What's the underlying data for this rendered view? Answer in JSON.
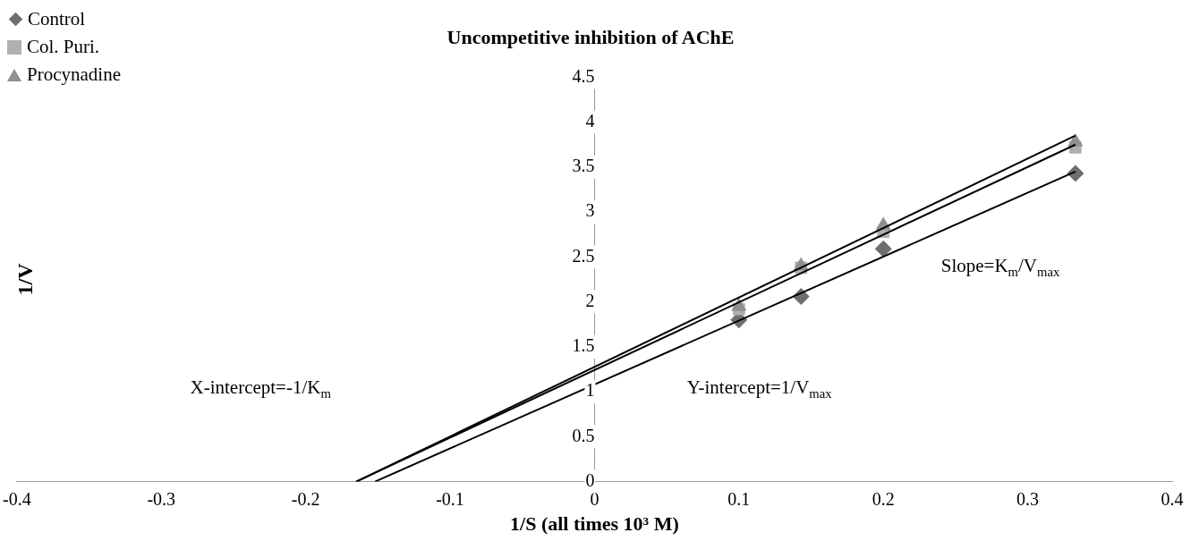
{
  "chart_data": {
    "type": "scatter",
    "title": "Uncompetitive inhibition of AChE",
    "xlabel": "1/S (all times 10³ M)",
    "ylabel": "1/V",
    "xlim": [
      -0.4,
      0.4
    ],
    "xticks": [
      -0.4,
      -0.3,
      -0.2,
      -0.1,
      0,
      0.1,
      0.2,
      0.3,
      0.4
    ],
    "ylim": [
      0,
      4.5
    ],
    "yticks": [
      0,
      0.5,
      1,
      1.5,
      2,
      2.5,
      3,
      3.5,
      4,
      4.5
    ],
    "grid": false,
    "legend": "top left",
    "series": [
      {
        "name": "Control",
        "type": "scatter",
        "marker": "diamond",
        "color": "#6e6e6e",
        "x": [
          0.1,
          0.143,
          0.2,
          0.333
        ],
        "values": [
          1.8,
          2.06,
          2.59,
          3.43
        ]
      },
      {
        "name": "Col. Puri.",
        "type": "scatter",
        "marker": "square",
        "color": "#b0b0b0",
        "x": [
          0.1,
          0.143,
          0.2,
          0.333
        ],
        "values": [
          1.92,
          2.38,
          2.78,
          3.72
        ]
      },
      {
        "name": "Procynadine",
        "type": "scatter",
        "marker": "triangle",
        "color": "#909090",
        "x": [
          0.1,
          0.143,
          0.2,
          0.333
        ],
        "values": [
          1.95,
          2.4,
          2.85,
          3.78
        ]
      },
      {
        "type": "line",
        "marker": "none",
        "color": "#000000",
        "x": [
          -0.152,
          0.333
        ],
        "values": [
          0,
          3.45
        ]
      },
      {
        "type": "line",
        "marker": "none",
        "color": "#000000",
        "x": [
          -0.165,
          0.333
        ],
        "values": [
          0,
          3.75
        ]
      },
      {
        "type": "line",
        "marker": "none",
        "color": "#000000",
        "x": [
          -0.165,
          0.333
        ],
        "values": [
          0,
          3.85
        ]
      }
    ],
    "annotations": [
      "Slope=K$_{m}$/V$_{max}$",
      "Y-intercept=1/V$_{max}$",
      "X-intercept=-1/K$_{m}$"
    ]
  }
}
